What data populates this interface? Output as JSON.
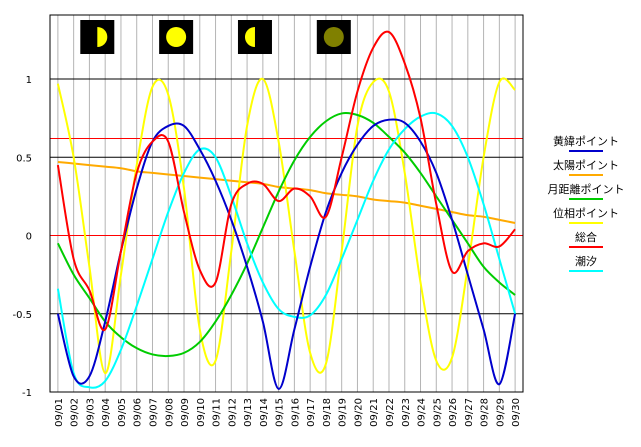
{
  "chart_data": {
    "type": "line",
    "title": "",
    "xlabel": "",
    "ylabel": "",
    "categories": [
      "09/01",
      "09/02",
      "09/03",
      "09/04",
      "09/05",
      "09/06",
      "09/07",
      "09/08",
      "09/09",
      "09/10",
      "09/11",
      "09/12",
      "09/13",
      "09/14",
      "09/15",
      "09/16",
      "09/17",
      "09/18",
      "09/19",
      "09/20",
      "09/21",
      "09/22",
      "09/23",
      "09/24",
      "09/25",
      "09/26",
      "09/27",
      "09/28",
      "09/29",
      "09/30"
    ],
    "ylim": [
      -1,
      1.4
    ],
    "y_ticks": [
      {
        "value": 1,
        "label": "1"
      },
      {
        "value": 0.5,
        "label": "0.5"
      },
      {
        "value": 0,
        "label": "0"
      },
      {
        "value": -0.5,
        "label": "-0.5"
      },
      {
        "value": -1,
        "label": "-1"
      }
    ],
    "reference_lines": [
      {
        "value": 1,
        "color": "#000000"
      },
      {
        "value": 0.62,
        "color": "#ff0000"
      },
      {
        "value": 0.5,
        "color": "#000000"
      },
      {
        "value": 0,
        "color": "#ff0000"
      },
      {
        "value": -0.5,
        "color": "#000000"
      },
      {
        "value": -1,
        "color": "#000000"
      }
    ],
    "moon_phases": [
      {
        "index": 2,
        "phase": "first-quarter",
        "icon": "half-moon-icon"
      },
      {
        "index": 7,
        "phase": "full",
        "icon": "full-moon-icon"
      },
      {
        "index": 12,
        "phase": "last-quarter",
        "icon": "half-moon-icon"
      },
      {
        "index": 17,
        "phase": "new",
        "icon": "new-moon-icon"
      }
    ],
    "grid_colors": {
      "vertical": "#b4b4b4",
      "frame": "#000000",
      "background": "#ffffff"
    },
    "legend_position": "right",
    "series": [
      {
        "name": "黄緯ポイント",
        "color": "#0000cc",
        "values": [
          -0.5,
          -0.9,
          -0.9,
          -0.55,
          -0.1,
          0.3,
          0.6,
          0.7,
          0.7,
          0.55,
          0.35,
          0.1,
          -0.2,
          -0.55,
          -0.98,
          -0.6,
          -0.2,
          0.15,
          0.4,
          0.58,
          0.7,
          0.74,
          0.72,
          0.6,
          0.4,
          0.1,
          -0.25,
          -0.6,
          -0.95,
          -0.5
        ]
      },
      {
        "name": "太陽ポイント",
        "color": "#ffaa00",
        "values": [
          0.47,
          0.46,
          0.45,
          0.44,
          0.43,
          0.41,
          0.4,
          0.39,
          0.38,
          0.37,
          0.36,
          0.35,
          0.34,
          0.33,
          0.31,
          0.3,
          0.29,
          0.27,
          0.26,
          0.25,
          0.23,
          0.22,
          0.21,
          0.19,
          0.17,
          0.15,
          0.13,
          0.12,
          0.1,
          0.08
        ]
      },
      {
        "name": "月距離ポイント",
        "color": "#00cc00",
        "values": [
          -0.05,
          -0.25,
          -0.4,
          -0.55,
          -0.65,
          -0.72,
          -0.76,
          -0.77,
          -0.75,
          -0.68,
          -0.55,
          -0.38,
          -0.18,
          0.05,
          0.28,
          0.48,
          0.63,
          0.73,
          0.78,
          0.77,
          0.72,
          0.63,
          0.53,
          0.4,
          0.25,
          0.1,
          -0.05,
          -0.2,
          -0.3,
          -0.38
        ]
      },
      {
        "name": "位相ポイント",
        "color": "#ffff00",
        "values": [
          0.97,
          0.5,
          -0.2,
          -0.88,
          -0.25,
          0.45,
          0.95,
          0.9,
          0.3,
          -0.6,
          -0.8,
          -0.1,
          0.7,
          1.0,
          0.6,
          -0.1,
          -0.75,
          -0.82,
          -0.1,
          0.7,
          0.98,
          0.92,
          0.4,
          -0.3,
          -0.8,
          -0.78,
          -0.2,
          0.5,
          0.98,
          0.93
        ]
      },
      {
        "name": "総合",
        "color": "#ff0000",
        "values": [
          0.45,
          -0.15,
          -0.35,
          -0.6,
          -0.1,
          0.4,
          0.6,
          0.6,
          0.15,
          -0.22,
          -0.3,
          0.2,
          0.33,
          0.33,
          0.22,
          0.3,
          0.25,
          0.12,
          0.5,
          0.92,
          1.2,
          1.3,
          1.1,
          0.75,
          0.2,
          -0.23,
          -0.1,
          -0.05,
          -0.07,
          0.04
        ]
      },
      {
        "name": "潮汐",
        "color": "#00ffff",
        "values": [
          -0.34,
          -0.88,
          -0.97,
          -0.93,
          -0.73,
          -0.45,
          -0.15,
          0.15,
          0.4,
          0.55,
          0.5,
          0.25,
          -0.05,
          -0.3,
          -0.47,
          -0.52,
          -0.51,
          -0.38,
          -0.15,
          0.1,
          0.35,
          0.55,
          0.68,
          0.76,
          0.78,
          0.7,
          0.5,
          0.2,
          -0.15,
          -0.5
        ]
      }
    ]
  }
}
